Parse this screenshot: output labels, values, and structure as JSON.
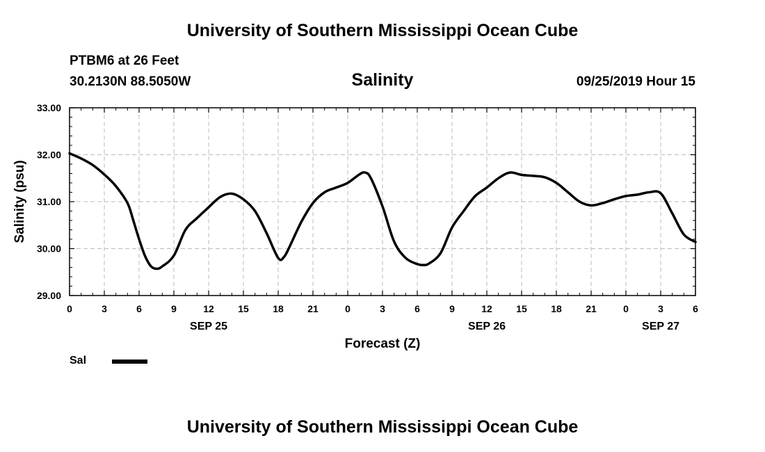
{
  "header": {
    "title": "University of Southern Mississippi Ocean Cube",
    "station": "PTBM6 at 26 Feet",
    "coordinates": "30.2130N 88.5050W",
    "parameter": "Salinity",
    "datetime": "09/25/2019 Hour 15"
  },
  "footer": {
    "title": "University of Southern Mississippi Ocean Cube"
  },
  "legend": {
    "label": "Sal",
    "color": "#000000"
  },
  "chart_data": {
    "type": "line",
    "title": "Salinity",
    "xlabel": "Forecast (Z)",
    "ylabel": "Salinity (psu)",
    "xlim": [
      0,
      54
    ],
    "ylim": [
      29.0,
      33.0
    ],
    "x_ticks": [
      {
        "x": 0,
        "label": "0"
      },
      {
        "x": 3,
        "label": "3"
      },
      {
        "x": 6,
        "label": "6"
      },
      {
        "x": 9,
        "label": "9"
      },
      {
        "x": 12,
        "label": "12"
      },
      {
        "x": 15,
        "label": "15"
      },
      {
        "x": 18,
        "label": "18"
      },
      {
        "x": 21,
        "label": "21"
      },
      {
        "x": 24,
        "label": "0"
      },
      {
        "x": 27,
        "label": "3"
      },
      {
        "x": 30,
        "label": "6"
      },
      {
        "x": 33,
        "label": "9"
      },
      {
        "x": 36,
        "label": "12"
      },
      {
        "x": 39,
        "label": "15"
      },
      {
        "x": 42,
        "label": "18"
      },
      {
        "x": 45,
        "label": "21"
      },
      {
        "x": 48,
        "label": "0"
      },
      {
        "x": 51,
        "label": "3"
      },
      {
        "x": 54,
        "label": "6"
      }
    ],
    "y_ticks": [
      {
        "y": 29,
        "label": "29.00"
      },
      {
        "y": 30,
        "label": "30.00"
      },
      {
        "y": 31,
        "label": "31.00"
      },
      {
        "y": 32,
        "label": "32.00"
      },
      {
        "y": 33,
        "label": "33.00"
      }
    ],
    "day_labels": [
      {
        "x": 12,
        "label": "SEP 25"
      },
      {
        "x": 36,
        "label": "SEP 26"
      },
      {
        "x": 51,
        "label": "SEP 27"
      }
    ],
    "grid": true,
    "series": [
      {
        "name": "Sal",
        "x": [
          0,
          1,
          2,
          3,
          4,
          5,
          5.5,
          6,
          6.5,
          7,
          7.5,
          8,
          9,
          10,
          11,
          12,
          13,
          14,
          15,
          16,
          17,
          18,
          18.5,
          19,
          20,
          21,
          22,
          23,
          24,
          25,
          25.5,
          26,
          27,
          28,
          29,
          30,
          30.5,
          31,
          32,
          33,
          34,
          35,
          36,
          37,
          38,
          39,
          40,
          41,
          42,
          43,
          44,
          45,
          46,
          47,
          48,
          49,
          50,
          51,
          52,
          53,
          54
        ],
        "values": [
          32.03,
          31.92,
          31.78,
          31.58,
          31.33,
          30.97,
          30.6,
          30.2,
          29.85,
          29.63,
          29.57,
          29.62,
          29.85,
          30.4,
          30.65,
          30.88,
          31.1,
          31.17,
          31.05,
          30.8,
          30.33,
          29.8,
          29.82,
          30.05,
          30.57,
          30.97,
          31.2,
          31.3,
          31.4,
          31.58,
          31.62,
          31.5,
          30.9,
          30.15,
          29.8,
          29.67,
          29.65,
          29.68,
          29.9,
          30.45,
          30.8,
          31.12,
          31.3,
          31.5,
          31.62,
          31.57,
          31.55,
          31.52,
          31.4,
          31.2,
          31.0,
          30.92,
          30.97,
          31.05,
          31.12,
          31.15,
          31.2,
          31.18,
          30.75,
          30.3,
          30.14
        ]
      }
    ]
  }
}
